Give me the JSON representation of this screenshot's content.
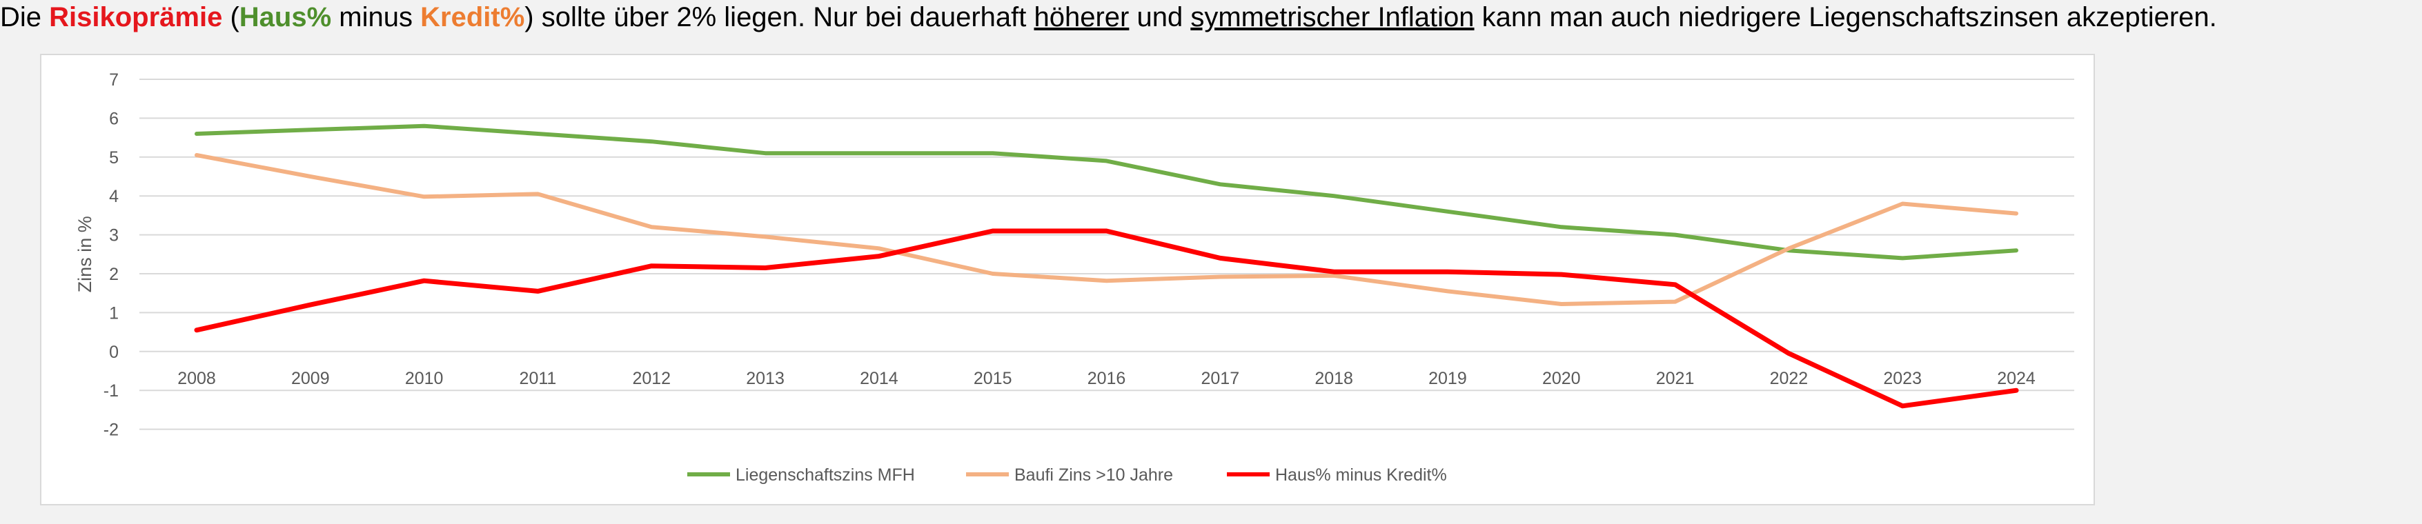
{
  "headline": {
    "t1": "Die ",
    "t2": "Risikoprämie",
    "t3": " (",
    "t4": "Haus%",
    "t5": " minus ",
    "t6": "Kredit%",
    "t7": ") sollte über 2% liegen. Nur bei dauerhaft ",
    "t8": "höherer",
    "t9": " und ",
    "t10": "symmetrischer Inflation",
    "t11": " kann man auch niedrigere Liegenschaftszinsen akzeptieren."
  },
  "colors": {
    "green": "#70ad47",
    "orange": "#f4b183",
    "red": "#ff0000",
    "grid": "#d9d9d9",
    "text": "#595959"
  },
  "chart_data": {
    "type": "line",
    "title": "",
    "xlabel": "",
    "ylabel": "Zins in %",
    "x": [
      "2008",
      "2009",
      "2010",
      "2011",
      "2012",
      "2013",
      "2014",
      "2015",
      "2016",
      "2017",
      "2018",
      "2019",
      "2020",
      "2021",
      "2022",
      "2023",
      "2024"
    ],
    "ylim": [
      -2,
      7
    ],
    "yticks": [
      7,
      6,
      5,
      4,
      3,
      2,
      1,
      0,
      -1,
      -2
    ],
    "grid": true,
    "legend": "bottom",
    "series": [
      {
        "name": "Liegenschaftszins MFH",
        "color": "#70ad47",
        "values": [
          5.6,
          5.7,
          5.8,
          5.6,
          5.4,
          5.1,
          5.1,
          5.1,
          4.9,
          4.3,
          4.0,
          3.6,
          3.2,
          3.0,
          2.6,
          2.4,
          2.6
        ]
      },
      {
        "name": "Baufi Zins >10 Jahre",
        "color": "#f4b183",
        "values": [
          5.05,
          4.5,
          3.98,
          4.05,
          3.2,
          2.95,
          2.65,
          2.0,
          1.82,
          1.92,
          1.95,
          1.55,
          1.22,
          1.28,
          2.65,
          3.8,
          3.55
        ]
      },
      {
        "name": "Haus% minus Kredit%",
        "color": "#ff0000",
        "values": [
          0.55,
          1.2,
          1.82,
          1.55,
          2.2,
          2.15,
          2.45,
          3.1,
          3.1,
          2.4,
          2.05,
          2.05,
          1.98,
          1.72,
          -0.05,
          -1.4,
          -1.0
        ]
      }
    ]
  }
}
